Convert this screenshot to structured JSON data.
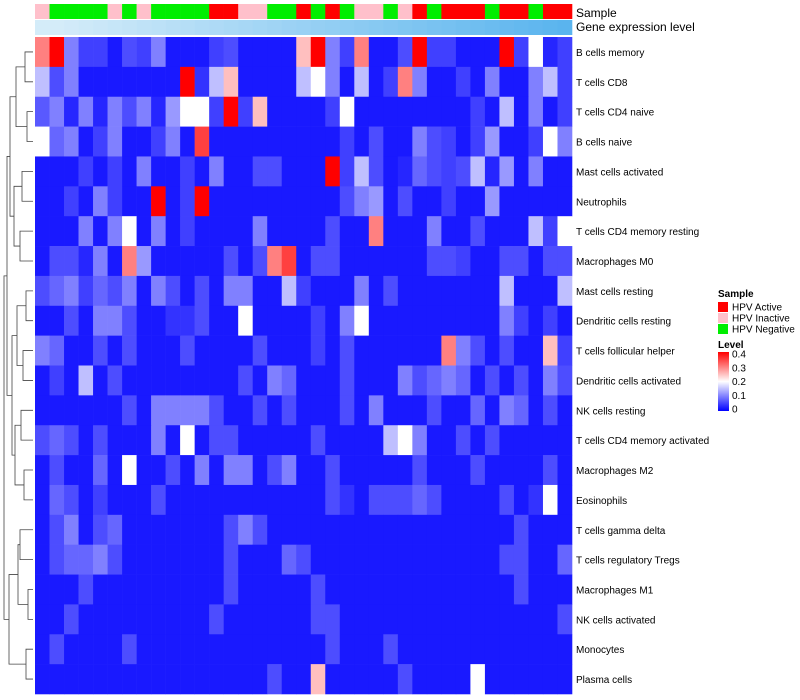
{
  "chart_data": {
    "type": "heatmap",
    "annotation_labels": {
      "sample": "Sample",
      "gene_expression": "Gene expression level"
    },
    "rows": [
      "B cells memory",
      "T cells CD8",
      "T cells CD4 naive",
      "B cells naive",
      "Mast cells activated",
      "Neutrophils",
      "T cells CD4 memory resting",
      "Macrophages M0",
      "Mast cells resting",
      "Dendritic cells resting",
      "T cells follicular helper",
      "Dendritic cells activated",
      "NK cells resting",
      "T cells CD4 memory activated",
      "Macrophages M2",
      "Eosinophils",
      "T cells gamma delta",
      "T cells regulatory  Tregs",
      "Macrophages M1",
      "NK cells activated",
      "Monocytes",
      "Plasma cells"
    ],
    "sample_annotation": [
      "I",
      "N",
      "N",
      "N",
      "N",
      "I",
      "N",
      "I",
      "N",
      "N",
      "N",
      "N",
      "A",
      "A",
      "I",
      "I",
      "N",
      "N",
      "A",
      "N",
      "A",
      "N",
      "I",
      "I",
      "N",
      "I",
      "A",
      "N",
      "A",
      "A",
      "A",
      "N",
      "A",
      "A",
      "N",
      "A",
      "A"
    ],
    "gene_expression_annotation": [
      0.62,
      0.62,
      0.63,
      0.64,
      0.65,
      0.66,
      0.67,
      0.68,
      0.69,
      0.7,
      0.71,
      0.72,
      0.73,
      0.74,
      0.75,
      0.76,
      0.77,
      0.78,
      0.79,
      0.8,
      0.81,
      0.82,
      0.83,
      0.84,
      0.85,
      0.86,
      0.87,
      0.88,
      0.89,
      0.9,
      0.91,
      0.92,
      0.93,
      0.94,
      0.95,
      0.96,
      0.97
    ],
    "values": [
      [
        0.3,
        0.4,
        0.1,
        0.05,
        0.05,
        0.02,
        0.06,
        0.05,
        0.1,
        0.02,
        0.02,
        0.02,
        0.05,
        0.06,
        0.02,
        0.02,
        0.02,
        0.02,
        0.25,
        0.4,
        0.1,
        0.05,
        0.3,
        0.02,
        0.02,
        0.06,
        0.4,
        0.05,
        0.05,
        0.02,
        0.02,
        0.02,
        0.4,
        0.05,
        0.2,
        0.03,
        0.05
      ],
      [
        0.15,
        0.06,
        0.1,
        0.02,
        0.02,
        0.02,
        0.02,
        0.02,
        0.02,
        0.02,
        0.4,
        0.04,
        0.15,
        0.25,
        0.02,
        0.02,
        0.02,
        0.02,
        0.15,
        0.2,
        0.1,
        0.02,
        0.15,
        0.02,
        0.05,
        0.3,
        0.1,
        0.02,
        0.02,
        0.05,
        0.02,
        0.1,
        0.02,
        0.02,
        0.1,
        0.15,
        0.05
      ],
      [
        0.07,
        0.1,
        0.03,
        0.1,
        0.03,
        0.1,
        0.06,
        0.1,
        0.03,
        0.12,
        0.2,
        0.2,
        0.05,
        0.4,
        0.05,
        0.25,
        0.02,
        0.02,
        0.02,
        0.02,
        0.05,
        0.2,
        0.02,
        0.02,
        0.02,
        0.02,
        0.02,
        0.02,
        0.02,
        0.02,
        0.05,
        0.02,
        0.15,
        0.02,
        0.1,
        0.02,
        0.05
      ],
      [
        0.2,
        0.08,
        0.1,
        0.02,
        0.05,
        0.1,
        0.02,
        0.02,
        0.05,
        0.1,
        0.02,
        0.35,
        0.02,
        0.02,
        0.02,
        0.02,
        0.02,
        0.02,
        0.02,
        0.02,
        0.02,
        0.05,
        0.02,
        0.06,
        0.02,
        0.02,
        0.1,
        0.06,
        0.05,
        0.02,
        0.05,
        0.12,
        0.02,
        0.02,
        0.05,
        0.2,
        0.1
      ],
      [
        0.02,
        0.02,
        0.02,
        0.05,
        0.02,
        0.05,
        0.02,
        0.1,
        0.02,
        0.02,
        0.05,
        0.02,
        0.1,
        0.02,
        0.02,
        0.06,
        0.06,
        0.02,
        0.02,
        0.02,
        0.4,
        0.05,
        0.15,
        0.06,
        0.02,
        0.03,
        0.08,
        0.06,
        0.05,
        0.06,
        0.15,
        0.03,
        0.12,
        0.02,
        0.1,
        0.02,
        0.02
      ],
      [
        0.02,
        0.02,
        0.05,
        0.02,
        0.1,
        0.05,
        0.02,
        0.02,
        0.4,
        0.02,
        0.05,
        0.4,
        0.02,
        0.02,
        0.02,
        0.02,
        0.02,
        0.02,
        0.02,
        0.02,
        0.02,
        0.06,
        0.1,
        0.12,
        0.02,
        0.06,
        0.02,
        0.02,
        0.05,
        0.02,
        0.02,
        0.12,
        0.02,
        0.02,
        0.02,
        0.02,
        0.02
      ],
      [
        0.02,
        0.02,
        0.02,
        0.1,
        0.02,
        0.1,
        0.2,
        0.02,
        0.1,
        0.02,
        0.05,
        0.02,
        0.02,
        0.02,
        0.02,
        0.1,
        0.02,
        0.02,
        0.02,
        0.02,
        0.06,
        0.02,
        0.02,
        0.3,
        0.02,
        0.02,
        0.02,
        0.1,
        0.02,
        0.02,
        0.06,
        0.02,
        0.02,
        0.02,
        0.15,
        0.05,
        0.2
      ],
      [
        0.02,
        0.06,
        0.06,
        0.03,
        0.1,
        0.02,
        0.3,
        0.12,
        0.02,
        0.02,
        0.02,
        0.02,
        0.02,
        0.06,
        0.02,
        0.06,
        0.3,
        0.35,
        0.02,
        0.06,
        0.06,
        0.02,
        0.02,
        0.02,
        0.02,
        0.02,
        0.02,
        0.06,
        0.06,
        0.05,
        0.02,
        0.02,
        0.06,
        0.06,
        0.02,
        0.06,
        0.06
      ],
      [
        0.06,
        0.08,
        0.1,
        0.05,
        0.08,
        0.06,
        0.1,
        0.02,
        0.1,
        0.06,
        0.02,
        0.06,
        0.02,
        0.1,
        0.1,
        0.02,
        0.02,
        0.15,
        0.05,
        0.02,
        0.02,
        0.02,
        0.1,
        0.02,
        0.06,
        0.02,
        0.02,
        0.02,
        0.02,
        0.02,
        0.02,
        0.02,
        0.15,
        0.02,
        0.02,
        0.02,
        0.15
      ],
      [
        0.02,
        0.02,
        0.06,
        0.02,
        0.1,
        0.1,
        0.06,
        0.02,
        0.02,
        0.04,
        0.04,
        0.06,
        0.02,
        0.02,
        0.2,
        0.02,
        0.02,
        0.02,
        0.02,
        0.05,
        0.02,
        0.1,
        0.2,
        0.02,
        0.02,
        0.02,
        0.02,
        0.02,
        0.02,
        0.02,
        0.02,
        0.02,
        0.1,
        0.05,
        0.02,
        0.05,
        0.02
      ],
      [
        0.1,
        0.08,
        0.02,
        0.02,
        0.06,
        0.02,
        0.06,
        0.02,
        0.02,
        0.02,
        0.06,
        0.02,
        0.02,
        0.02,
        0.02,
        0.06,
        0.02,
        0.02,
        0.02,
        0.05,
        0.02,
        0.06,
        0.02,
        0.02,
        0.02,
        0.02,
        0.02,
        0.02,
        0.3,
        0.1,
        0.06,
        0.02,
        0.06,
        0.02,
        0.02,
        0.25,
        0.05
      ],
      [
        0.02,
        0.05,
        0.02,
        0.15,
        0.02,
        0.06,
        0.02,
        0.02,
        0.02,
        0.02,
        0.02,
        0.02,
        0.02,
        0.02,
        0.06,
        0.02,
        0.1,
        0.08,
        0.02,
        0.02,
        0.02,
        0.06,
        0.02,
        0.02,
        0.02,
        0.1,
        0.06,
        0.08,
        0.1,
        0.08,
        0.02,
        0.06,
        0.02,
        0.06,
        0.02,
        0.1,
        0.06
      ],
      [
        0.02,
        0.02,
        0.02,
        0.02,
        0.02,
        0.02,
        0.06,
        0.02,
        0.1,
        0.1,
        0.1,
        0.1,
        0.06,
        0.02,
        0.02,
        0.06,
        0.02,
        0.06,
        0.02,
        0.02,
        0.02,
        0.06,
        0.02,
        0.1,
        0.02,
        0.02,
        0.02,
        0.06,
        0.02,
        0.02,
        0.08,
        0.02,
        0.1,
        0.08,
        0.02,
        0.06,
        0.02
      ],
      [
        0.06,
        0.08,
        0.06,
        0.02,
        0.06,
        0.02,
        0.02,
        0.02,
        0.1,
        0.02,
        0.2,
        0.02,
        0.06,
        0.06,
        0.02,
        0.02,
        0.02,
        0.02,
        0.02,
        0.06,
        0.02,
        0.02,
        0.02,
        0.02,
        0.15,
        0.2,
        0.1,
        0.02,
        0.02,
        0.06,
        0.02,
        0.06,
        0.02,
        0.02,
        0.02,
        0.02,
        0.02
      ],
      [
        0.02,
        0.06,
        0.02,
        0.02,
        0.08,
        0.02,
        0.2,
        0.02,
        0.02,
        0.06,
        0.02,
        0.1,
        0.02,
        0.1,
        0.1,
        0.02,
        0.06,
        0.1,
        0.02,
        0.02,
        0.06,
        0.02,
        0.02,
        0.02,
        0.02,
        0.02,
        0.06,
        0.02,
        0.02,
        0.02,
        0.06,
        0.02,
        0.02,
        0.02,
        0.02,
        0.06,
        0.02
      ],
      [
        0.02,
        0.08,
        0.06,
        0.02,
        0.05,
        0.02,
        0.02,
        0.02,
        0.06,
        0.02,
        0.02,
        0.02,
        0.02,
        0.02,
        0.02,
        0.02,
        0.02,
        0.02,
        0.02,
        0.02,
        0.06,
        0.04,
        0.02,
        0.06,
        0.06,
        0.06,
        0.08,
        0.06,
        0.02,
        0.02,
        0.02,
        0.02,
        0.06,
        0.02,
        0.04,
        0.2,
        0.02
      ],
      [
        0.02,
        0.06,
        0.1,
        0.02,
        0.06,
        0.08,
        0.02,
        0.02,
        0.02,
        0.02,
        0.02,
        0.02,
        0.02,
        0.06,
        0.1,
        0.06,
        0.02,
        0.02,
        0.02,
        0.02,
        0.02,
        0.02,
        0.02,
        0.02,
        0.02,
        0.02,
        0.02,
        0.02,
        0.02,
        0.02,
        0.02,
        0.02,
        0.02,
        0.06,
        0.02,
        0.02,
        0.02
      ],
      [
        0.02,
        0.06,
        0.08,
        0.08,
        0.1,
        0.06,
        0.02,
        0.02,
        0.02,
        0.02,
        0.02,
        0.02,
        0.02,
        0.06,
        0.02,
        0.02,
        0.02,
        0.08,
        0.06,
        0.02,
        0.02,
        0.02,
        0.02,
        0.02,
        0.02,
        0.02,
        0.02,
        0.02,
        0.02,
        0.02,
        0.02,
        0.02,
        0.06,
        0.06,
        0.02,
        0.02,
        0.08
      ],
      [
        0.02,
        0.02,
        0.02,
        0.06,
        0.02,
        0.02,
        0.02,
        0.02,
        0.02,
        0.02,
        0.02,
        0.02,
        0.02,
        0.06,
        0.02,
        0.02,
        0.02,
        0.02,
        0.02,
        0.06,
        0.02,
        0.02,
        0.02,
        0.02,
        0.02,
        0.02,
        0.02,
        0.02,
        0.02,
        0.02,
        0.02,
        0.02,
        0.02,
        0.06,
        0.02,
        0.02,
        0.02
      ],
      [
        0.02,
        0.02,
        0.06,
        0.02,
        0.02,
        0.02,
        0.02,
        0.02,
        0.02,
        0.02,
        0.02,
        0.02,
        0.06,
        0.02,
        0.02,
        0.02,
        0.02,
        0.02,
        0.02,
        0.06,
        0.06,
        0.02,
        0.02,
        0.02,
        0.02,
        0.02,
        0.02,
        0.02,
        0.02,
        0.02,
        0.02,
        0.02,
        0.02,
        0.02,
        0.02,
        0.02,
        0.06
      ],
      [
        0.02,
        0.06,
        0.02,
        0.02,
        0.02,
        0.02,
        0.06,
        0.02,
        0.02,
        0.02,
        0.02,
        0.02,
        0.02,
        0.02,
        0.02,
        0.02,
        0.02,
        0.02,
        0.02,
        0.02,
        0.06,
        0.02,
        0.02,
        0.02,
        0.06,
        0.02,
        0.02,
        0.02,
        0.02,
        0.02,
        0.02,
        0.02,
        0.02,
        0.02,
        0.02,
        0.02,
        0.02
      ],
      [
        0.02,
        0.02,
        0.02,
        0.02,
        0.02,
        0.02,
        0.02,
        0.02,
        0.02,
        0.02,
        0.02,
        0.02,
        0.02,
        0.02,
        0.02,
        0.02,
        0.06,
        0.02,
        0.02,
        0.25,
        0.02,
        0.02,
        0.02,
        0.02,
        0.02,
        0.06,
        0.02,
        0.02,
        0.02,
        0.02,
        0.2,
        0.02,
        0.02,
        0.02,
        0.02,
        0.02,
        0.02
      ]
    ],
    "legend": {
      "sample_title": "Sample",
      "sample_items": [
        {
          "key": "A",
          "label": "HPV Active",
          "color": "#ff0000"
        },
        {
          "key": "I",
          "label": "HPV Inactive",
          "color": "#ffc0cb"
        },
        {
          "key": "N",
          "label": "HPV Negative",
          "color": "#00ee00"
        }
      ],
      "level_title": "Level",
      "level_ticks": [
        0.4,
        0.3,
        0.2,
        0.1,
        0
      ],
      "level_tick_labels": [
        "0.4",
        "0.3",
        "0.2",
        "0.1",
        "0"
      ]
    },
    "color_scale": {
      "min": 0,
      "max": 0.4,
      "low": "#0000ff",
      "mid": "#ffffff",
      "high": "#ff0000"
    },
    "gene_expression_colors": {
      "low": "#d4ecf9",
      "high": "#5ab4ee"
    },
    "dendrogram": "row"
  }
}
